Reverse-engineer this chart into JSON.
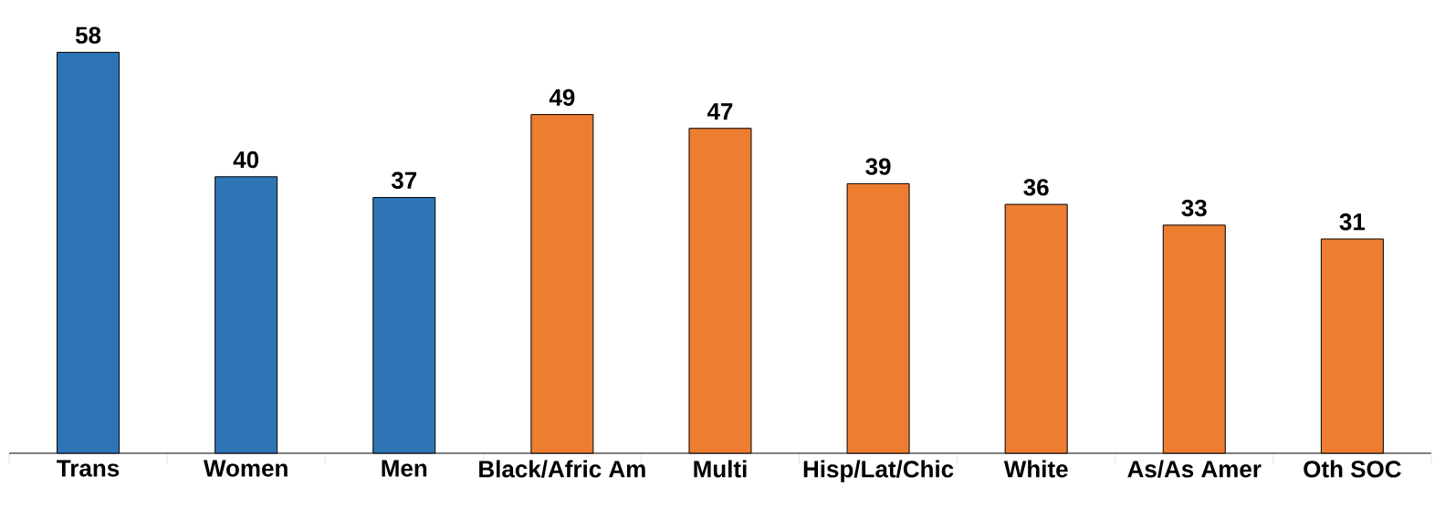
{
  "chart_data": {
    "type": "bar",
    "categories": [
      "Trans",
      "Women",
      "Men",
      "Black/Afric Am",
      "Multi",
      "Hisp/Lat/Chic",
      "White",
      "As/As Amer",
      "Oth SOC"
    ],
    "values": [
      58,
      40,
      37,
      49,
      47,
      39,
      36,
      33,
      31
    ],
    "colors": [
      "#2e75b6",
      "#2e75b6",
      "#2e75b6",
      "#ed7d31",
      "#ed7d31",
      "#ed7d31",
      "#ed7d31",
      "#ed7d31",
      "#ed7d31"
    ],
    "data_labels": true
  }
}
